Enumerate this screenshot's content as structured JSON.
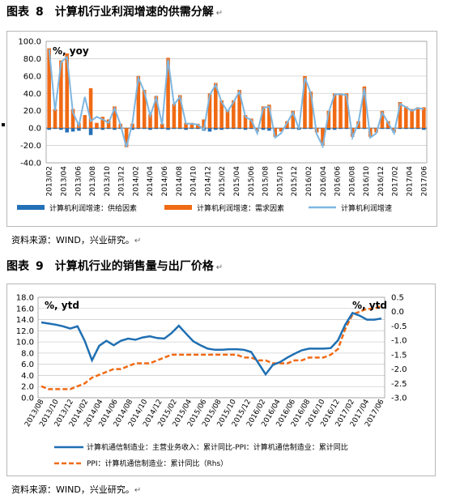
{
  "figure8": {
    "label": "图表",
    "number": "8",
    "title": "计算机行业利润增速的供需分解",
    "source": "资料来源：WIND，兴业研究。"
  },
  "figure9": {
    "label": "图表",
    "number": "9",
    "title": "计算机行业的销售量与出厂价格",
    "source": "资料来源：WIND，兴业研究。"
  },
  "chart_data": [
    {
      "type": "bar",
      "unit_label": "%, yoy",
      "ylim": [
        -40,
        100
      ],
      "yticks": [
        -40,
        -20,
        0,
        20,
        40,
        60,
        80,
        100
      ],
      "x_tick_labels": [
        "2013/02",
        "2013/04",
        "2013/06",
        "2013/08",
        "2013/10",
        "2013/12",
        "2014/02",
        "2014/04",
        "2014/06",
        "2014/08",
        "2014/10",
        "2014/12",
        "2015/02",
        "2015/04",
        "2015/06",
        "2015/08",
        "2015/10",
        "2015/12",
        "2016/02",
        "2016/04",
        "2016/06",
        "2016/08",
        "2016/10",
        "2016/12",
        "2017/02",
        "2017/04",
        "2017/06"
      ],
      "legend_position": "bottom",
      "grid": true,
      "series": [
        {
          "name": "计算机利润增速：供给因素",
          "kind": "bar",
          "color": "#2470b8",
          "values": [
            -2,
            -1,
            -2,
            -5,
            -4,
            -3,
            -1,
            -8,
            -1,
            -2,
            -1,
            -2,
            -1,
            -2,
            -2,
            -1,
            -1,
            -2,
            -1,
            -1,
            -2,
            -1,
            -1,
            -2,
            -1,
            -1,
            -3,
            -4,
            -2,
            -2,
            -1,
            -1,
            -1,
            -2,
            -1,
            -1,
            -2,
            -3,
            -1,
            -2,
            -1,
            -1,
            -2,
            -1,
            -1,
            -4,
            -5,
            -2,
            -2,
            -1,
            -1,
            -2,
            -1,
            -1,
            -1,
            -2,
            -1,
            -1,
            -1,
            -1,
            -1,
            -1,
            -1,
            -2
          ]
        },
        {
          "name": "计算机利润增速：需求因素",
          "kind": "bar",
          "color": "#f06a14",
          "values": [
            92,
            22,
            78,
            86,
            22,
            6,
            15,
            46,
            6,
            13,
            10,
            25,
            5,
            -22,
            5,
            60,
            44,
            16,
            37,
            5,
            81,
            28,
            38,
            6,
            6,
            5,
            10,
            40,
            52,
            32,
            21,
            32,
            44,
            15,
            11,
            -4,
            25,
            27,
            -10,
            -4,
            8,
            20,
            1,
            60,
            42,
            -5,
            -20,
            20,
            40,
            40,
            40,
            -10,
            8,
            48,
            -10,
            -5,
            20,
            8,
            -5,
            30,
            25,
            22,
            24,
            24
          ]
        },
        {
          "name": "计算机利润增速",
          "kind": "line",
          "color": "#7eb6e0",
          "values": [
            91,
            20,
            76,
            82,
            18,
            3,
            36,
            8,
            13,
            10,
            6,
            23,
            4,
            -22,
            6,
            58,
            42,
            14,
            35,
            4,
            79,
            27,
            36,
            5,
            5,
            4,
            -2,
            38,
            50,
            30,
            19,
            30,
            42,
            13,
            9,
            -6,
            23,
            25,
            -11,
            -6,
            6,
            18,
            -1,
            58,
            40,
            -7,
            -21,
            18,
            39,
            39,
            38,
            -11,
            6,
            46,
            -11,
            -6,
            18,
            6,
            -6,
            28,
            24,
            20,
            23,
            22
          ]
        }
      ]
    },
    {
      "type": "line",
      "unit_label_left": "%, ytd",
      "unit_label_right": "%, ytd",
      "ylim_left": [
        0,
        18
      ],
      "yticks_left": [
        0.0,
        2.0,
        4.0,
        6.0,
        8.0,
        10.0,
        12.0,
        14.0,
        16.0,
        18.0
      ],
      "ylim_right": [
        -3.0,
        0.5
      ],
      "yticks_right": [
        -3.0,
        -2.5,
        -2.0,
        -1.5,
        -1.0,
        -0.5,
        0.0,
        0.5
      ],
      "x_tick_labels": [
        "2013/08",
        "2013/10",
        "2013/12",
        "2014/02",
        "2014/04",
        "2014/06",
        "2014/08",
        "2014/10",
        "2014/12",
        "2015/02",
        "2015/04",
        "2015/06",
        "2015/08",
        "2015/10",
        "2015/12",
        "2016/02",
        "2016/04",
        "2016/06",
        "2016/08",
        "2016/10",
        "2016/12",
        "2017/02",
        "2017/04",
        "2017/06"
      ],
      "legend_position": "bottom",
      "grid": true,
      "series": [
        {
          "name": "计算机通信制造业：主营业务收入：累计同比-PPI：计算机通信制造业：累计同比",
          "axis": "left",
          "color": "#1f6fb2",
          "style": "solid",
          "values": [
            13.5,
            13.3,
            13.1,
            12.8,
            12.4,
            12.8,
            10.2,
            6.7,
            9.3,
            10.2,
            9.4,
            10.2,
            10.6,
            10.4,
            10.8,
            11.0,
            10.7,
            10.6,
            11.6,
            12.9,
            11.5,
            10.1,
            9.4,
            8.8,
            8.6,
            8.6,
            8.7,
            8.7,
            8.6,
            8.2,
            6.2,
            4.2,
            5.9,
            6.4,
            7.2,
            7.9,
            8.5,
            8.8,
            8.8,
            8.8,
            8.9,
            10.3,
            13.1,
            15.2,
            14.7,
            14.0,
            14.0,
            14.2
          ]
        },
        {
          "name": "PPI：计算机通信制造业：累计同比（Rhs）",
          "axis": "right",
          "color": "#f06a14",
          "style": "dashed",
          "values": [
            -2.6,
            -2.7,
            -2.7,
            -2.7,
            -2.7,
            -2.6,
            -2.5,
            -2.3,
            -2.2,
            -2.1,
            -2.0,
            -2.0,
            -1.9,
            -1.8,
            -1.8,
            -1.8,
            -1.7,
            -1.6,
            -1.5,
            -1.5,
            -1.5,
            -1.5,
            -1.5,
            -1.5,
            -1.5,
            -1.5,
            -1.5,
            -1.5,
            -1.6,
            -1.6,
            -1.7,
            -1.7,
            -1.8,
            -1.8,
            -1.8,
            -1.7,
            -1.7,
            -1.6,
            -1.6,
            -1.6,
            -1.5,
            -1.3,
            -0.6,
            -0.1,
            0.0,
            0.1,
            0.1,
            0.2
          ]
        }
      ]
    }
  ]
}
